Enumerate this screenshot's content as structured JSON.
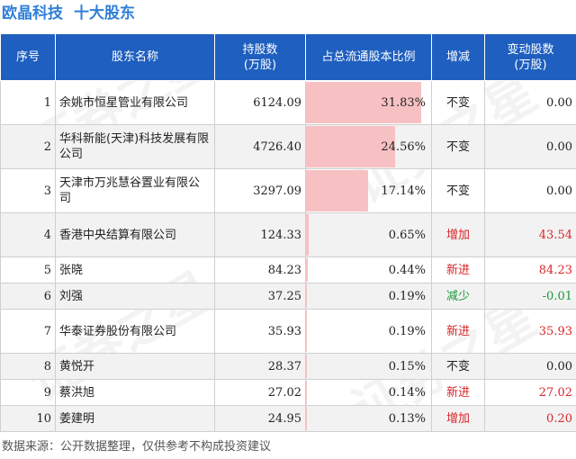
{
  "header": {
    "company": "欧晶科技",
    "subtitle": "十大股东"
  },
  "columns": {
    "index": "序号",
    "name": "股东名称",
    "shares": "持股数\n(万股)",
    "ratio": "占总流通股本比例",
    "change": "增减",
    "delta": "变动股数\n(万股)"
  },
  "rows": [
    {
      "index": "1",
      "name": "余姚市恒星管业有限公司",
      "shares": "6124.09",
      "ratio": "31.83%",
      "ratio_value": 31.83,
      "change": "不变",
      "change_type": "same",
      "delta": "0.00"
    },
    {
      "index": "2",
      "name": "华科新能(天津)科技发展有限公司",
      "shares": "4726.40",
      "ratio": "24.56%",
      "ratio_value": 24.56,
      "change": "不变",
      "change_type": "same",
      "delta": "0.00"
    },
    {
      "index": "3",
      "name": "天津市万兆慧谷置业有限公司",
      "shares": "3297.09",
      "ratio": "17.14%",
      "ratio_value": 17.14,
      "change": "不变",
      "change_type": "same",
      "delta": "0.00"
    },
    {
      "index": "4",
      "name": "香港中央结算有限公司",
      "shares": "124.33",
      "ratio": "0.65%",
      "ratio_value": 0.65,
      "change": "增加",
      "change_type": "up",
      "delta": "43.54"
    },
    {
      "index": "5",
      "name": "张晓",
      "shares": "84.23",
      "ratio": "0.44%",
      "ratio_value": 0.44,
      "change": "新进",
      "change_type": "up",
      "delta": "84.23"
    },
    {
      "index": "6",
      "name": "刘强",
      "shares": "37.25",
      "ratio": "0.19%",
      "ratio_value": 0.19,
      "change": "减少",
      "change_type": "down",
      "delta": "-0.01"
    },
    {
      "index": "7",
      "name": "华泰证券股份有限公司",
      "shares": "35.93",
      "ratio": "0.19%",
      "ratio_value": 0.19,
      "change": "新进",
      "change_type": "up",
      "delta": "35.93"
    },
    {
      "index": "8",
      "name": "黄悦开",
      "shares": "28.37",
      "ratio": "0.15%",
      "ratio_value": 0.15,
      "change": "不变",
      "change_type": "same",
      "delta": "0.00"
    },
    {
      "index": "9",
      "name": "蔡洪旭",
      "shares": "27.02",
      "ratio": "0.14%",
      "ratio_value": 0.14,
      "change": "新进",
      "change_type": "up",
      "delta": "27.02"
    },
    {
      "index": "10",
      "name": "姜建明",
      "shares": "24.95",
      "ratio": "0.13%",
      "ratio_value": 0.13,
      "change": "增加",
      "change_type": "up",
      "delta": "0.20"
    }
  ],
  "footer": "数据来源：公开数据整理，仅供参考不构成投资建议",
  "watermark": "证券之星",
  "colors": {
    "title": "#2f7fd8",
    "header_bg": "#1f5fbf",
    "bar": "#f7c1c3",
    "up": "#d9262a",
    "down": "#1a9a3a"
  }
}
